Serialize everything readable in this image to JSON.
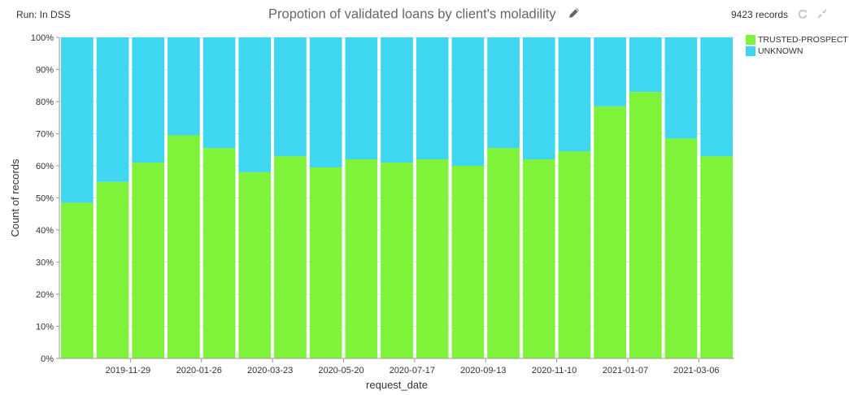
{
  "header": {
    "run_status": "Run: In DSS",
    "record_count": "9423 records",
    "icons": {
      "edit": "pencil-icon",
      "refresh": "refresh-icon",
      "collapse": "collapse-arrows-icon"
    }
  },
  "colors": {
    "trusted": "#7ff23a",
    "unknown": "#3fd6f2",
    "grid": "#e6e6e6"
  },
  "chart_data": {
    "type": "bar",
    "stacked": "percent",
    "title": "Propotion of validated loans by client's moladility",
    "xlabel": "request_date",
    "ylabel": "Count of records",
    "ylim": [
      0,
      100
    ],
    "yticks": [
      "0%",
      "10%",
      "20%",
      "30%",
      "40%",
      "50%",
      "60%",
      "70%",
      "80%",
      "90%",
      "100%"
    ],
    "xticks": [
      "2019-11-29",
      "2020-01-26",
      "2020-03-23",
      "2020-05-20",
      "2020-07-17",
      "2020-09-13",
      "2020-11-10",
      "2021-01-07",
      "2021-03-06"
    ],
    "legend_position": "top-right",
    "grid": true,
    "series": [
      {
        "name": "TRUSTED-PROSPECT",
        "values": [
          48.5,
          55,
          61,
          69.5,
          65.5,
          58,
          63,
          59.5,
          62,
          61,
          62,
          60,
          65.5,
          62,
          64.5,
          78.5,
          83,
          68.5,
          63
        ]
      },
      {
        "name": "UNKNOWN",
        "values": [
          51.5,
          45,
          39,
          30.5,
          34.5,
          42,
          37,
          40.5,
          38,
          39,
          38,
          40,
          34.5,
          38,
          35.5,
          21.5,
          17,
          31.5,
          37
        ]
      }
    ]
  }
}
